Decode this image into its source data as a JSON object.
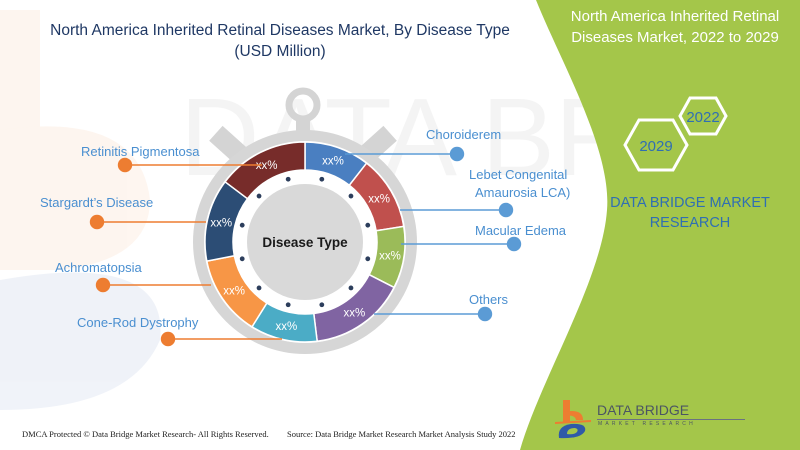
{
  "header": {
    "title_line1": "North America Inherited Retinal Diseases Market, By Disease Type",
    "title_line2": "(USD Million)"
  },
  "side_panel": {
    "title_line1": "North America Inherited Retinal",
    "title_line2": "Diseases Market, 2022 to 2029",
    "hexagons": [
      {
        "label": "2022"
      },
      {
        "label": "2029"
      }
    ],
    "brand_line1": "DATA BRIDGE MARKET",
    "brand_line2": "RESEARCH",
    "background_color": "#a4c64a"
  },
  "chart_data": {
    "type": "pie",
    "title": "North America Inherited Retinal Diseases Market, By Disease Type (USD Million)",
    "center_label": "Disease Type",
    "categories": [
      "Choroiderem",
      "Lebet Congenital Amaurosia LCA)",
      "Macular Edema",
      "Others",
      "Cone-Rod Dystrophy",
      "Achromatopsia",
      "Stargardt’s Disease",
      "Retinitis Pigmentosa"
    ],
    "values": [
      "xx%",
      "xx%",
      "xx%",
      "xx%",
      "xx%",
      "xx%",
      "xx%",
      "xx%"
    ],
    "colors": [
      "#4a7fc1",
      "#c0504d",
      "#9bbb59",
      "#8064a2",
      "#4bacc6",
      "#f79646",
      "#2c4d75",
      "#772c2a"
    ],
    "legend_position": "callouts"
  },
  "segments": [
    {
      "name": "Choroiderem",
      "pct": "xx%"
    },
    {
      "name": "Lebet Congenital Amaurosia LCA)",
      "pct": "xx%"
    },
    {
      "name": "Macular Edema",
      "pct": "xx%"
    },
    {
      "name": "Others",
      "pct": "xx%"
    },
    {
      "name": "Cone-Rod Dystrophy",
      "pct": "xx%"
    },
    {
      "name": "Achromatopsia",
      "pct": "xx%"
    },
    {
      "name": "Stargardt’s Disease",
      "pct": "xx%"
    },
    {
      "name": "Retinitis Pigmentosa",
      "pct": "xx%"
    }
  ],
  "labels": {
    "left": [
      "Retinitis Pigmentosa",
      "Stargardt’s Disease",
      "Achromatopsia",
      "Cone-Rod Dystrophy"
    ],
    "right": [
      "Choroiderem",
      "Lebet Congenital",
      "Amaurosia LCA)",
      "Macular Edema",
      "Others"
    ]
  },
  "footer": {
    "copyright": "DMCA Protected © Data Bridge Market Research- All Rights Reserved.",
    "source": "Source: Data Bridge Market Research Market Analysis Study 2022"
  },
  "logo": {
    "name": "DATA BRIDGE",
    "subtitle": "MARKET RESEARCH"
  }
}
